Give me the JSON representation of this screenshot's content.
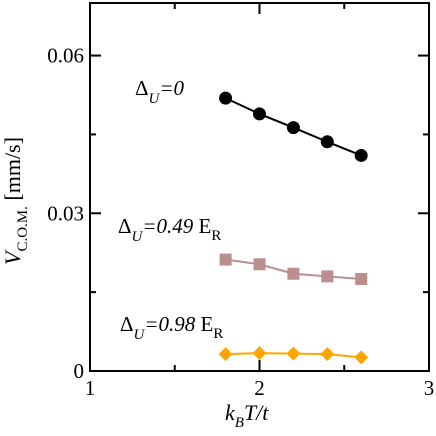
{
  "chart_data": {
    "type": "line",
    "xlabel": {
      "main": "k",
      "sub": "B",
      "rest": "T/t"
    },
    "ylabel": {
      "main": "V",
      "sub": "C.O.M.",
      "rest": " [mm/s]"
    },
    "xlim": [
      1,
      3
    ],
    "ylim": [
      0,
      0.07
    ],
    "xticks": [
      1,
      2,
      3
    ],
    "xtick_labels": [
      "1",
      "2",
      "3"
    ],
    "yticks": [
      0,
      0.03,
      0.06
    ],
    "ytick_labels": [
      "0",
      "0.03",
      "0.06"
    ],
    "grid": false,
    "legend": "none",
    "series": [
      {
        "x": [
          1.8,
          2.0,
          2.2,
          2.4,
          2.6
        ],
        "values": [
          0.0519,
          0.0489,
          0.0463,
          0.0436,
          0.041
        ],
        "color": "#000000",
        "marker": "circle"
      },
      {
        "x": [
          1.8,
          2.0,
          2.2,
          2.4,
          2.6
        ],
        "values": [
          0.0212,
          0.0203,
          0.0185,
          0.018,
          0.0175
        ],
        "color": "#bc8f8f",
        "marker": "square"
      },
      {
        "x": [
          1.8,
          2.0,
          2.2,
          2.4,
          2.6
        ],
        "values": [
          0.0032,
          0.0034,
          0.0033,
          0.0032,
          0.0026
        ],
        "color": "#ffa500",
        "marker": "diamond"
      }
    ],
    "annotations": [
      {
        "delta": "Δ",
        "sub": "U",
        "eq": "=",
        "value": "0",
        "unit": "",
        "unit_sub": ""
      },
      {
        "delta": "Δ",
        "sub": "U",
        "eq": "=",
        "value": "0.49",
        "unit": " E",
        "unit_sub": "R"
      },
      {
        "delta": "Δ",
        "sub": "U",
        "eq": "=",
        "value": "0.98",
        "unit": " E",
        "unit_sub": "R"
      }
    ]
  }
}
